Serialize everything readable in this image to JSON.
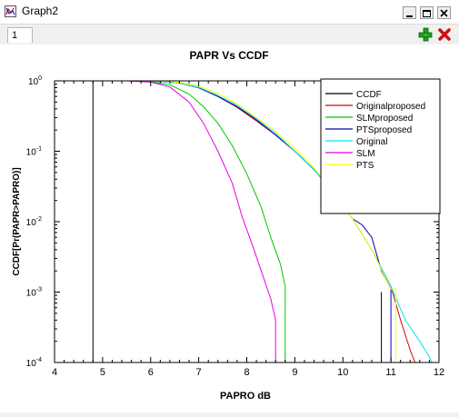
{
  "window": {
    "title": "Graph2"
  },
  "tabs": [
    {
      "label": "1"
    }
  ],
  "toolbar": {
    "add_icon": "plus-icon",
    "remove_icon": "close-x-icon"
  },
  "colors": {
    "ccdf": "#000000",
    "originalproposed": "#e00000",
    "slmproposed": "#00c800",
    "ptsproposed": "#0000b4",
    "original": "#00e6e6",
    "slm": "#e600e6",
    "pts": "#ffff00"
  },
  "chart_data": {
    "type": "line",
    "title": "PAPR Vs CCDF",
    "xlabel": "PAPRO dB",
    "ylabel": "CCDF[Pr(PAPR>PAPRO)]",
    "xlim": [
      4,
      12
    ],
    "ylim": [
      0.0001,
      1
    ],
    "yscale": "log",
    "xticks": [
      4,
      5,
      6,
      7,
      8,
      9,
      10,
      11,
      12
    ],
    "yticks": [
      {
        "value": 1,
        "base": "10",
        "exp": "0"
      },
      {
        "value": 0.1,
        "base": "10",
        "exp": "-1"
      },
      {
        "value": 0.01,
        "base": "10",
        "exp": "-2"
      },
      {
        "value": 0.001,
        "base": "10",
        "exp": "-3"
      },
      {
        "value": 0.0001,
        "base": "10",
        "exp": "-4"
      }
    ],
    "legend_position": "top-right",
    "series": [
      {
        "name": "CCDF",
        "color": "#000000",
        "x": [
          4.8,
          4.8,
          10.8,
          10.8
        ],
        "y": [
          0.0001,
          1,
          0.001,
          0.0001
        ]
      },
      {
        "name": "Originalproposed",
        "color": "#e00000",
        "x": [
          5.7,
          6.2,
          6.6,
          7.0,
          7.4,
          7.8,
          8.2,
          8.6,
          9.0,
          9.4,
          9.8,
          10.2,
          10.6,
          11.0,
          11.2,
          11.4,
          11.5
        ],
        "y": [
          1,
          0.98,
          0.93,
          0.8,
          0.6,
          0.42,
          0.27,
          0.17,
          0.1,
          0.055,
          0.026,
          0.011,
          0.004,
          0.0012,
          0.0004,
          0.00015,
          0.0001
        ]
      },
      {
        "name": "SLMproposed",
        "color": "#00c800",
        "x": [
          5.5,
          6.0,
          6.4,
          6.8,
          7.1,
          7.4,
          7.7,
          8.0,
          8.3,
          8.5,
          8.7,
          8.8,
          8.8
        ],
        "y": [
          1,
          0.97,
          0.88,
          0.65,
          0.43,
          0.25,
          0.12,
          0.048,
          0.016,
          0.006,
          0.0025,
          0.0012,
          0.0001
        ]
      },
      {
        "name": "PTSproposed",
        "color": "#0000b4",
        "x": [
          5.7,
          6.2,
          6.6,
          7.0,
          7.4,
          7.8,
          8.2,
          8.6,
          9.0,
          9.4,
          9.8,
          10.2,
          10.4,
          10.6,
          10.8,
          10.9,
          11.0,
          11.0
        ],
        "y": [
          1,
          0.98,
          0.93,
          0.8,
          0.6,
          0.43,
          0.28,
          0.17,
          0.1,
          0.055,
          0.026,
          0.011,
          0.009,
          0.006,
          0.002,
          0.0015,
          0.0011,
          0.0001
        ]
      },
      {
        "name": "Original",
        "color": "#00e6e6",
        "x": [
          5.8,
          6.2,
          6.6,
          7.0,
          7.4,
          7.8,
          8.2,
          8.6,
          9.0,
          9.4,
          9.8,
          10.2,
          10.6,
          11.0,
          11.3,
          11.6,
          11.8,
          11.85
        ],
        "y": [
          1,
          0.98,
          0.93,
          0.81,
          0.62,
          0.45,
          0.29,
          0.18,
          0.1,
          0.055,
          0.026,
          0.011,
          0.004,
          0.0012,
          0.0004,
          0.0002,
          0.00012,
          0.0001
        ]
      },
      {
        "name": "SLM",
        "color": "#e600e6",
        "x": [
          5.5,
          6.0,
          6.4,
          6.8,
          7.1,
          7.4,
          7.7,
          7.9,
          8.1,
          8.3,
          8.5,
          8.6,
          8.6
        ],
        "y": [
          1,
          0.96,
          0.82,
          0.5,
          0.25,
          0.1,
          0.035,
          0.012,
          0.005,
          0.002,
          0.0008,
          0.0004,
          0.0001
        ]
      },
      {
        "name": "PTS",
        "color": "#ffff00",
        "x": [
          5.8,
          6.2,
          6.6,
          7.0,
          7.4,
          7.8,
          8.2,
          8.6,
          9.0,
          9.4,
          9.8,
          10.2,
          10.6,
          10.9,
          11.0,
          11.1,
          11.1
        ],
        "y": [
          1,
          0.99,
          0.95,
          0.84,
          0.66,
          0.47,
          0.3,
          0.19,
          0.11,
          0.058,
          0.027,
          0.011,
          0.004,
          0.0015,
          0.0011,
          0.0011,
          0.0001
        ]
      }
    ]
  }
}
